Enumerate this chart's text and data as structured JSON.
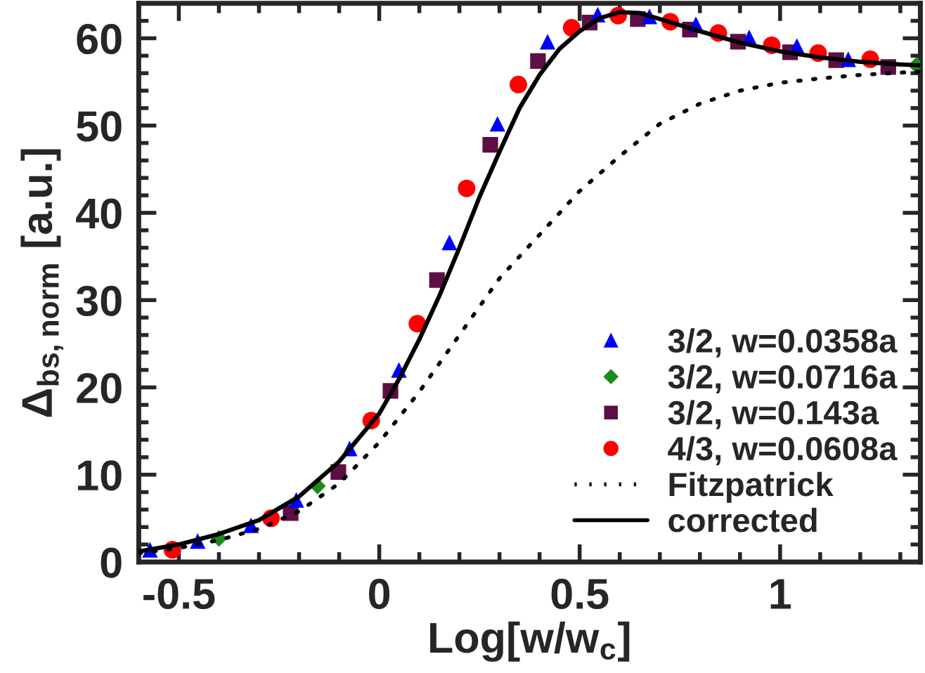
{
  "chart_data": {
    "type": "scatter",
    "xlabel": "Log[w/w$_{c}$]",
    "ylabel": "Δ$_{bs,norm}$ [a.u.]",
    "xlim": [
      -0.6,
      1.35
    ],
    "ylim": [
      0,
      64
    ],
    "xticks": [
      -0.5,
      0,
      0.5,
      1
    ],
    "yticks": [
      0,
      10,
      20,
      30,
      40,
      50,
      60
    ],
    "legend": "bottom right",
    "grid": false,
    "series": [
      {
        "name": "3/2, w=0.0358a",
        "color": "#0000ff",
        "marker": "triangle",
        "x": [
          -0.572,
          -0.453,
          -0.32,
          -0.207,
          -0.074,
          0.049,
          0.175,
          0.295,
          0.42,
          0.545,
          0.674,
          0.79,
          0.923,
          1.042,
          1.17
        ],
        "values": [
          1.4,
          2.4,
          4.2,
          7.1,
          13.0,
          22.0,
          36.6,
          50.2,
          59.6,
          62.7,
          62.5,
          61.6,
          60.1,
          59.1,
          57.6
        ]
      },
      {
        "name": "3/2, w=0.0716a",
        "color": "#1a8c1a",
        "marker": "diamond",
        "x": [
          -0.4,
          -0.154,
          1.34
        ],
        "values": [
          2.7,
          8.7,
          56.9
        ]
      },
      {
        "name": "3/2, w=0.143a",
        "color": "#5c0f45",
        "marker": "square",
        "x": [
          -0.221,
          -0.102,
          0.028,
          0.144,
          0.277,
          0.396,
          0.525,
          0.645,
          0.775,
          0.895,
          1.025,
          1.14,
          1.27
        ],
        "values": [
          5.6,
          10.3,
          19.6,
          32.3,
          47.8,
          57.4,
          61.8,
          62.2,
          61.0,
          59.6,
          58.4,
          57.5,
          56.7
        ]
      },
      {
        "name": "4/3, w=0.0608a",
        "color": "#ff0000",
        "marker": "circle",
        "x": [
          -0.516,
          -0.27,
          -0.02,
          0.095,
          0.218,
          0.347,
          0.48,
          0.596,
          0.726,
          0.846,
          0.979,
          1.095,
          1.225
        ],
        "values": [
          1.4,
          5.0,
          16.2,
          27.3,
          42.8,
          54.7,
          61.2,
          62.6,
          61.9,
          60.6,
          59.2,
          58.3,
          57.6
        ]
      },
      {
        "name": "Fitzpatrick",
        "type": "line",
        "color": "#000000",
        "line_style": "dotted",
        "x": [
          -0.6,
          -0.5,
          -0.4,
          -0.3,
          -0.2,
          -0.1,
          0,
          0.1,
          0.2,
          0.3,
          0.4,
          0.5,
          0.6,
          0.7,
          0.8,
          0.9,
          1.0,
          1.1,
          1.2,
          1.35
        ],
        "values": [
          1.0,
          1.6,
          2.5,
          3.8,
          5.8,
          9.0,
          13.7,
          19.5,
          26.0,
          32.5,
          37.5,
          42.5,
          46.5,
          50.2,
          52.5,
          54.0,
          54.9,
          55.4,
          55.8,
          56.2
        ]
      },
      {
        "name": "corrected",
        "type": "line",
        "color": "#000000",
        "line_style": "solid",
        "x": [
          -0.6,
          -0.5,
          -0.4,
          -0.3,
          -0.2,
          -0.1,
          0,
          0.05,
          0.1,
          0.15,
          0.2,
          0.25,
          0.3,
          0.35,
          0.4,
          0.45,
          0.5,
          0.55,
          0.6,
          0.65,
          0.7,
          0.8,
          0.9,
          1.0,
          1.1,
          1.2,
          1.3,
          1.35
        ],
        "values": [
          1.2,
          2.0,
          3.2,
          4.8,
          7.5,
          11.5,
          17.0,
          21.0,
          25.5,
          30.5,
          36.0,
          41.8,
          47.0,
          52.0,
          55.8,
          58.8,
          60.8,
          62.3,
          63.0,
          62.9,
          62.2,
          60.8,
          59.5,
          58.5,
          57.8,
          57.3,
          57.0,
          56.9
        ]
      }
    ]
  }
}
